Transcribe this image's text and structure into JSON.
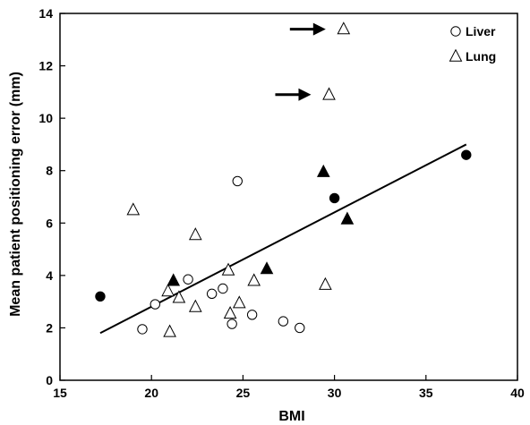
{
  "chart_data": {
    "type": "scatter",
    "xlabel": "BMI",
    "ylabel": "Mean patient positioning  error (mm)",
    "xlim": [
      15,
      40
    ],
    "ylim": [
      0,
      14
    ],
    "xticks": [
      15,
      20,
      25,
      30,
      35,
      40
    ],
    "yticks": [
      0,
      2,
      4,
      6,
      8,
      10,
      12,
      14
    ],
    "grid": false,
    "legend_position": "top-right",
    "series": [
      {
        "name": "Liver",
        "marker": "circle",
        "points": [
          {
            "x": 17.2,
            "y": 3.2,
            "filled": true
          },
          {
            "x": 19.5,
            "y": 1.95,
            "filled": false
          },
          {
            "x": 20.2,
            "y": 2.9,
            "filled": false
          },
          {
            "x": 22.0,
            "y": 3.85,
            "filled": false
          },
          {
            "x": 23.3,
            "y": 3.3,
            "filled": false
          },
          {
            "x": 23.9,
            "y": 3.5,
            "filled": false
          },
          {
            "x": 24.4,
            "y": 2.15,
            "filled": false
          },
          {
            "x": 24.7,
            "y": 7.6,
            "filled": false
          },
          {
            "x": 25.5,
            "y": 2.5,
            "filled": false
          },
          {
            "x": 27.2,
            "y": 2.25,
            "filled": false
          },
          {
            "x": 28.1,
            "y": 2.0,
            "filled": false
          },
          {
            "x": 30.0,
            "y": 6.95,
            "filled": true
          },
          {
            "x": 37.2,
            "y": 8.6,
            "filled": true
          }
        ]
      },
      {
        "name": "Lung",
        "marker": "triangle",
        "points": [
          {
            "x": 19.0,
            "y": 6.5,
            "filled": false
          },
          {
            "x": 20.9,
            "y": 3.4,
            "filled": false
          },
          {
            "x": 21.0,
            "y": 1.85,
            "filled": false
          },
          {
            "x": 21.2,
            "y": 3.8,
            "filled": true
          },
          {
            "x": 21.5,
            "y": 3.15,
            "filled": false
          },
          {
            "x": 22.4,
            "y": 5.55,
            "filled": false
          },
          {
            "x": 22.4,
            "y": 2.8,
            "filled": false
          },
          {
            "x": 24.2,
            "y": 4.2,
            "filled": false
          },
          {
            "x": 24.3,
            "y": 2.55,
            "filled": false
          },
          {
            "x": 24.8,
            "y": 2.95,
            "filled": false
          },
          {
            "x": 25.6,
            "y": 3.8,
            "filled": false
          },
          {
            "x": 26.3,
            "y": 4.25,
            "filled": true
          },
          {
            "x": 29.4,
            "y": 7.95,
            "filled": true
          },
          {
            "x": 29.5,
            "y": 3.65,
            "filled": false
          },
          {
            "x": 29.7,
            "y": 10.9,
            "filled": false
          },
          {
            "x": 30.5,
            "y": 13.4,
            "filled": false
          },
          {
            "x": 30.7,
            "y": 6.15,
            "filled": true
          }
        ]
      }
    ],
    "trendline": {
      "x1": 17.2,
      "y1": 1.8,
      "x2": 37.2,
      "y2": 9.0
    },
    "annotations": [
      {
        "type": "arrow",
        "points_to": {
          "x": 30.5,
          "y": 13.4
        }
      },
      {
        "type": "arrow",
        "points_to": {
          "x": 29.7,
          "y": 10.9
        }
      }
    ]
  }
}
